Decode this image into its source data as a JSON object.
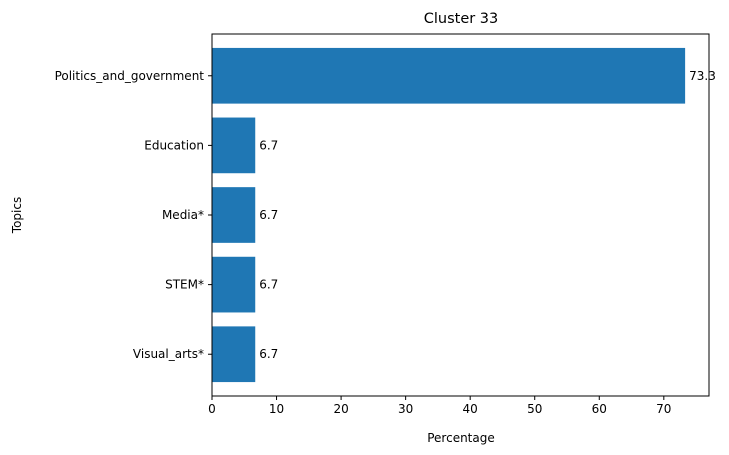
{
  "chart_data": {
    "type": "bar",
    "orientation": "horizontal",
    "title": "Cluster 33",
    "xlabel": "Percentage",
    "ylabel": "Topics",
    "categories": [
      "Politics_and_government",
      "Education",
      "Media*",
      "STEM*",
      "Visual_arts*"
    ],
    "values": [
      73.3,
      6.7,
      6.7,
      6.7,
      6.7
    ],
    "data_labels": [
      "73.3",
      "6.7",
      "6.7",
      "6.7",
      "6.7"
    ],
    "xlim": [
      0,
      77
    ],
    "xticks": [
      0,
      10,
      20,
      30,
      40,
      50,
      60,
      70
    ],
    "grid": false,
    "bar_color": "#1f77b4"
  }
}
